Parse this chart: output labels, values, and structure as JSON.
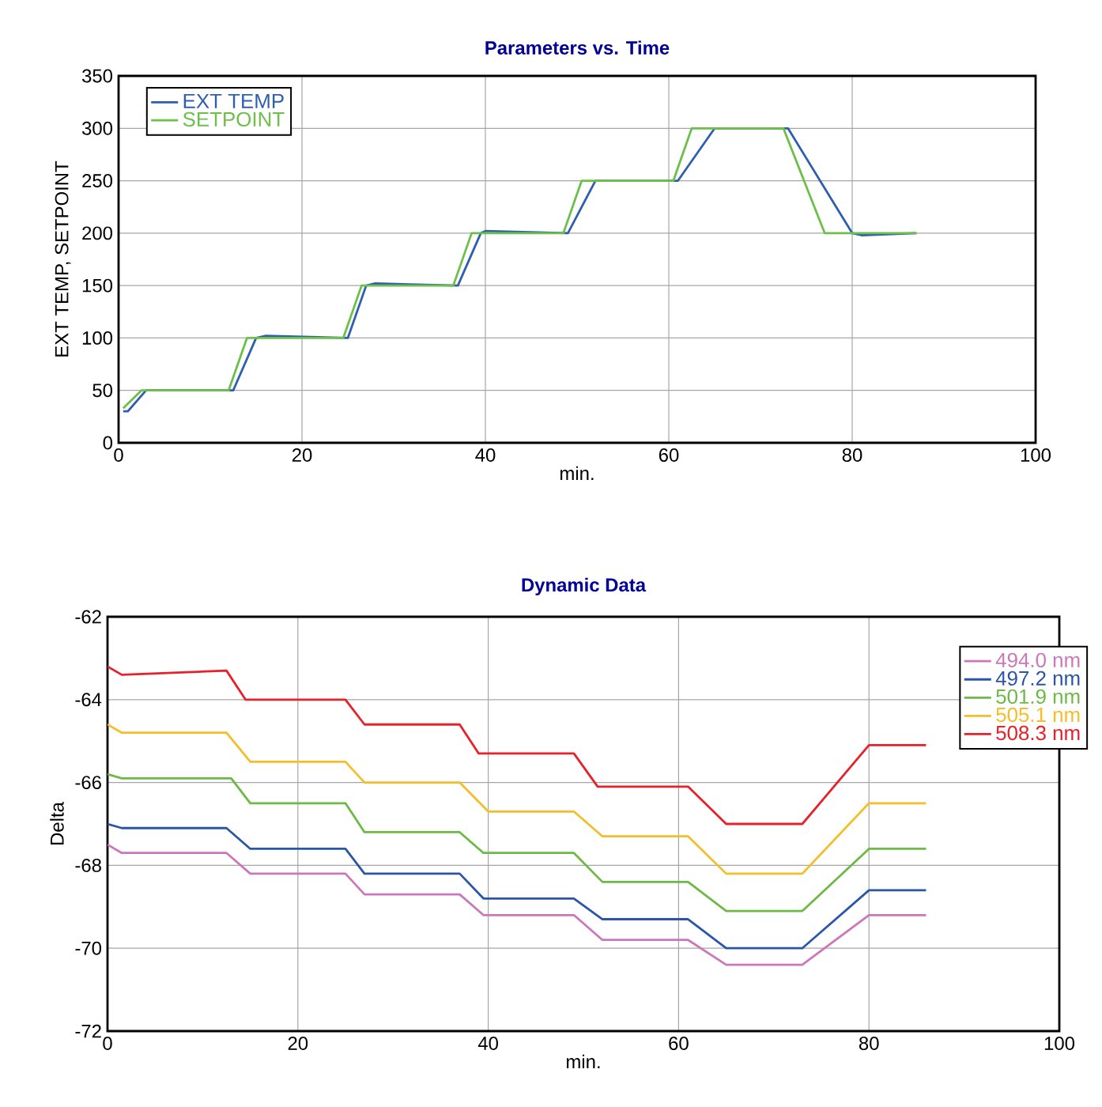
{
  "chart_data": [
    {
      "type": "line",
      "title": "Parameters vs. Time",
      "xlabel": "min.",
      "ylabel": "EXT TEMP, SETPOINT",
      "xlim": [
        0,
        100
      ],
      "xticks": [
        0,
        20,
        40,
        60,
        80,
        100
      ],
      "ylim": [
        0,
        350
      ],
      "yticks": [
        0,
        50,
        100,
        150,
        200,
        250,
        300,
        350
      ],
      "grid": true,
      "legend": "top left",
      "series": [
        {
          "name": "EXT TEMP",
          "color": "#2e5fae",
          "x": [
            0.5,
            1,
            3,
            12.5,
            15,
            16,
            25,
            27,
            28,
            37,
            39.5,
            40,
            49,
            52,
            61,
            65,
            73,
            80,
            81,
            87
          ],
          "values": [
            30,
            30,
            50,
            50,
            100,
            102,
            100,
            150,
            152,
            150,
            200,
            202,
            200,
            250,
            250,
            300,
            300,
            200,
            198,
            200
          ]
        },
        {
          "name": "SETPOINT",
          "color": "#6cc04a",
          "x": [
            0.5,
            2.5,
            12,
            14,
            24.5,
            26.5,
            36.5,
            38.5,
            48.5,
            50.5,
            60.5,
            62.5,
            72.5,
            77,
            87
          ],
          "values": [
            33,
            50,
            50,
            100,
            100,
            150,
            150,
            200,
            200,
            250,
            250,
            300,
            300,
            200,
            200
          ]
        }
      ]
    },
    {
      "type": "line",
      "title": "Dynamic Data",
      "xlabel": "min.",
      "ylabel": "Delta",
      "xlim": [
        0,
        100
      ],
      "xticks": [
        0,
        20,
        40,
        60,
        80,
        100
      ],
      "ylim": [
        -72,
        -62
      ],
      "yticks": [
        -72,
        -70,
        -68,
        -66,
        -64,
        -62
      ],
      "grid": true,
      "legend": "top right",
      "series": [
        {
          "name": "494.0 nm",
          "color": "#cc77bb",
          "x": [
            0,
            1.5,
            12.5,
            15,
            25,
            27,
            37,
            39.5,
            49,
            52,
            61,
            65,
            73,
            80,
            86
          ],
          "values": [
            -67.5,
            -67.7,
            -67.7,
            -68.2,
            -68.2,
            -68.7,
            -68.7,
            -69.2,
            -69.2,
            -69.8,
            -69.8,
            -70.4,
            -70.4,
            -69.2,
            -69.2
          ]
        },
        {
          "name": "497.2 nm",
          "color": "#2a55a8",
          "x": [
            0,
            1.5,
            12.5,
            15,
            25,
            27,
            37,
            39.5,
            49,
            52,
            61,
            65,
            73,
            80,
            86
          ],
          "values": [
            -67.0,
            -67.1,
            -67.1,
            -67.6,
            -67.6,
            -68.2,
            -68.2,
            -68.8,
            -68.8,
            -69.3,
            -69.3,
            -70.0,
            -70.0,
            -68.6,
            -68.6
          ]
        },
        {
          "name": "501.9 nm",
          "color": "#6cba45",
          "x": [
            0,
            1.5,
            13,
            15,
            25,
            27,
            37,
            39.5,
            49,
            52,
            61,
            65,
            73,
            80,
            86
          ],
          "values": [
            -65.8,
            -65.9,
            -65.9,
            -66.5,
            -66.5,
            -67.2,
            -67.2,
            -67.7,
            -67.7,
            -68.4,
            -68.4,
            -69.1,
            -69.1,
            -67.6,
            -67.6
          ]
        },
        {
          "name": "505.1 nm",
          "color": "#f5be28",
          "x": [
            0,
            1.5,
            12.5,
            15,
            25,
            27,
            37,
            40,
            49,
            52,
            61,
            65,
            73,
            80,
            86
          ],
          "values": [
            -64.6,
            -64.8,
            -64.8,
            -65.5,
            -65.5,
            -66.0,
            -66.0,
            -66.7,
            -66.7,
            -67.3,
            -67.3,
            -68.2,
            -68.2,
            -66.5,
            -66.5
          ]
        },
        {
          "name": "508.3 nm",
          "color": "#e8202a",
          "x": [
            0,
            1.5,
            12.5,
            14.5,
            25,
            27,
            37,
            39,
            49,
            51.5,
            61,
            65,
            73,
            80,
            86
          ],
          "values": [
            -63.2,
            -63.4,
            -63.3,
            -64.0,
            -64.0,
            -64.6,
            -64.6,
            -65.3,
            -65.3,
            -66.1,
            -66.1,
            -67.0,
            -67.0,
            -65.1,
            -65.1
          ]
        }
      ]
    }
  ]
}
